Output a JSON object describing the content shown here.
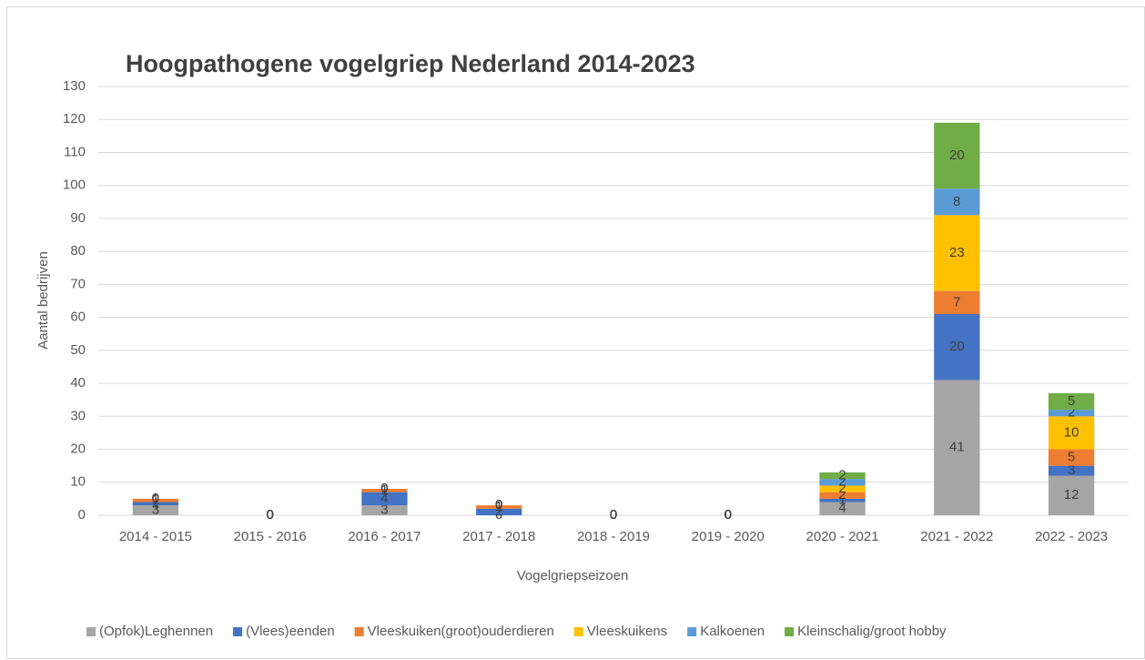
{
  "chart_data": {
    "type": "stacked_bar",
    "title": "Hoogpathogene vogelgriep Nederland 2014-2023",
    "x_label": "Vogelgriepseizoen",
    "y_label": "Aantal bedrijven",
    "categories": [
      "2014 - 2015",
      "2015 - 2016",
      "2016 - 2017",
      "2017 - 2018",
      "2018 - 2019",
      "2019 - 2020",
      "2020 - 2021",
      "2021 - 2022",
      "2022 - 2023"
    ],
    "series": [
      {
        "name": "(Opfok)Leghennen",
        "color": "#a5a5a5",
        "values": [
          3,
          0,
          3,
          0,
          0,
          0,
          4,
          41,
          12
        ]
      },
      {
        "name": "(Vlees)eenden",
        "color": "#4472c4",
        "values": [
          1,
          0,
          4,
          2,
          0,
          0,
          1,
          20,
          3
        ]
      },
      {
        "name": "Vleeskuiken(groot)ouderdieren",
        "color": "#ed7d31",
        "values": [
          1,
          0,
          1,
          1,
          0,
          0,
          2,
          7,
          5
        ]
      },
      {
        "name": "Vleeskuikens",
        "color": "#ffc000",
        "values": [
          0,
          0,
          0,
          0,
          0,
          0,
          2,
          23,
          10
        ]
      },
      {
        "name": "Kalkoenen",
        "color": "#5b9bd5",
        "values": [
          0,
          0,
          0,
          0,
          0,
          0,
          2,
          8,
          2
        ]
      },
      {
        "name": "Kleinschalig/groot hobby",
        "color": "#70ad47",
        "values": [
          0,
          0,
          0,
          0,
          0,
          0,
          2,
          20,
          5
        ]
      }
    ],
    "ylim": [
      0,
      130
    ],
    "yticks": [
      0,
      10,
      20,
      30,
      40,
      50,
      60,
      70,
      80,
      90,
      100,
      110,
      120,
      130
    ],
    "grid": true,
    "legend": "bottom"
  }
}
